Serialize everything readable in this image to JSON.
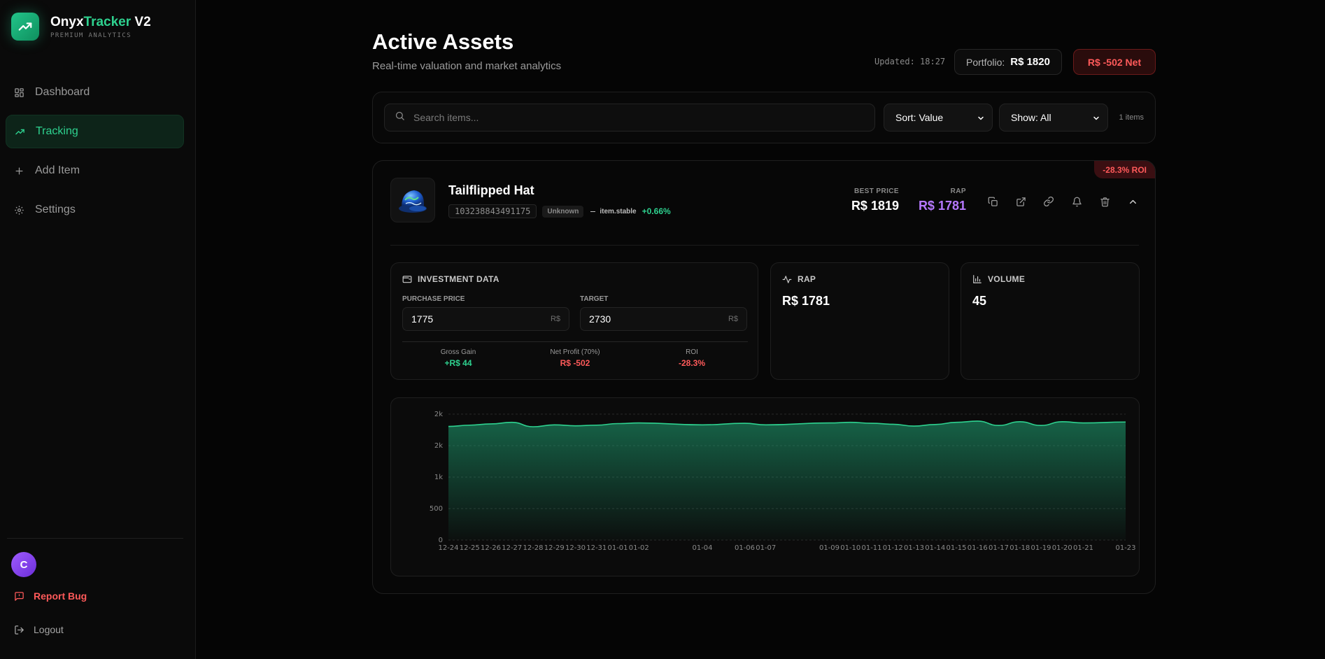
{
  "brand": {
    "name_part1": "Onyx",
    "name_part2": "Tracker",
    "name_part3": " V2",
    "subtitle": "PREMIUM ANALYTICS"
  },
  "nav": [
    {
      "label": "Dashboard",
      "icon": "grid-icon",
      "active": false
    },
    {
      "label": "Tracking",
      "icon": "trending-up-icon",
      "active": true
    },
    {
      "label": "Add Item",
      "icon": "plus-icon",
      "active": false
    },
    {
      "label": "Settings",
      "icon": "gear-icon",
      "active": false
    }
  ],
  "user": {
    "avatar_letter": "C"
  },
  "footer": {
    "report_bug": "Report Bug",
    "logout": "Logout"
  },
  "header": {
    "title": "Active Assets",
    "subtitle": "Real-time valuation and market analytics",
    "updated": "Updated: 18:27",
    "portfolio_label": "Portfolio:",
    "portfolio_value": "R$ 1820",
    "net": "R$ -502 Net"
  },
  "filters": {
    "search_placeholder": "Search items...",
    "sort": "Sort: Value",
    "show": "Show: All",
    "count": "1 items"
  },
  "item": {
    "name": "Tailflipped Hat",
    "id": "103238843491175",
    "tag": "Unknown",
    "stability": "item.stable",
    "change": "+0.66%",
    "roi_badge": "-28.3% ROI",
    "best_price_label": "BEST PRICE",
    "best_price": "R$ 1819",
    "rap_label": "RAP",
    "rap": "R$ 1781"
  },
  "investment": {
    "title": "INVESTMENT DATA",
    "purchase_label": "PURCHASE PRICE",
    "purchase_value": "1775",
    "target_label": "TARGET",
    "target_value": "2730",
    "currency_suffix": "R$",
    "gross_label": "Gross Gain",
    "gross_value": "+R$ 44",
    "net_label": "Net Profit (70%)",
    "net_value": "R$ -502",
    "roi_label": "ROI",
    "roi_value": "-28.3%"
  },
  "rap_panel": {
    "title": "RAP",
    "value": "R$ 1781"
  },
  "volume_panel": {
    "title": "VOLUME",
    "value": "45"
  },
  "colors": {
    "accent": "#2ed18f",
    "negative": "#ff5a5a",
    "rap": "#b678ff"
  },
  "chart_data": {
    "type": "area",
    "x": [
      "12-24",
      "12-25",
      "12-26",
      "12-27",
      "12-28",
      "12-29",
      "12-30",
      "12-31",
      "01-01",
      "01-02",
      "01-04",
      "01-06",
      "01-07",
      "01-09",
      "01-10",
      "01-11",
      "01-12",
      "01-13",
      "01-14",
      "01-15",
      "01-16",
      "01-17",
      "01-18",
      "01-19",
      "01-20",
      "01-21",
      "01-23"
    ],
    "x_positions": [
      0,
      1,
      2,
      3,
      4,
      5,
      6,
      7,
      8,
      9,
      12,
      14,
      15,
      18,
      19,
      20,
      21,
      22,
      23,
      24,
      25,
      26,
      27,
      28,
      29,
      30,
      32
    ],
    "series": [
      {
        "values": [
          1805,
          1825,
          1845,
          1870,
          1800,
          1830,
          1815,
          1825,
          1850,
          1860,
          1830,
          1855,
          1830,
          1860,
          1870,
          1855,
          1840,
          1810,
          1835,
          1870,
          1890,
          1820,
          1880,
          1820,
          1880,
          1860,
          1875
        ]
      }
    ],
    "y_ticks": [
      0,
      500,
      1000,
      1500,
      2000
    ],
    "y_tick_labels": [
      "0",
      "500",
      "1k",
      "2k",
      "2k"
    ],
    "ylim": [
      0,
      2000
    ],
    "grid": true
  }
}
